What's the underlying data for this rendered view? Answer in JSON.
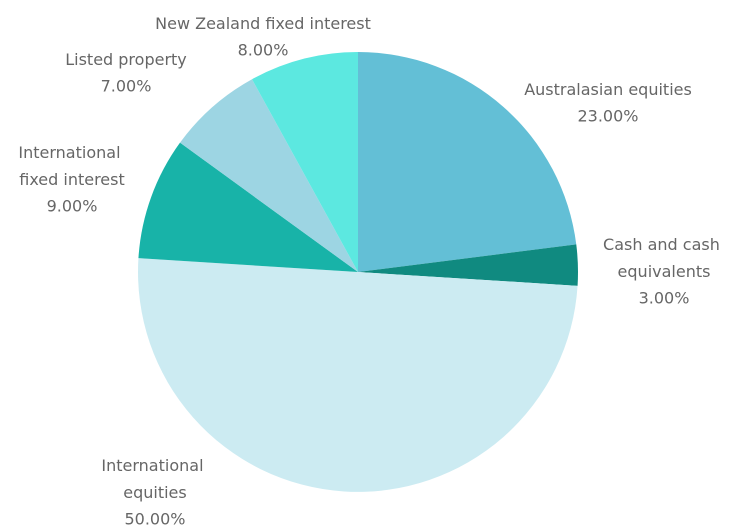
{
  "chart_data": {
    "type": "pie",
    "categories": [
      "Australasian equities",
      "Cash and cash equivalents",
      "International equities",
      "International fixed interest",
      "Listed property",
      "New Zealand fixed interest"
    ],
    "values": [
      23,
      3,
      50,
      9,
      7,
      8
    ],
    "value_labels": [
      "23.00%",
      "3.00%",
      "50.00%",
      "9.00%",
      "7.00%",
      "8.00%"
    ],
    "colors": [
      "#63bfd6",
      "#108a80",
      "#ccebf2",
      "#18b3a8",
      "#9dd5e3",
      "#5ce8e0"
    ]
  }
}
